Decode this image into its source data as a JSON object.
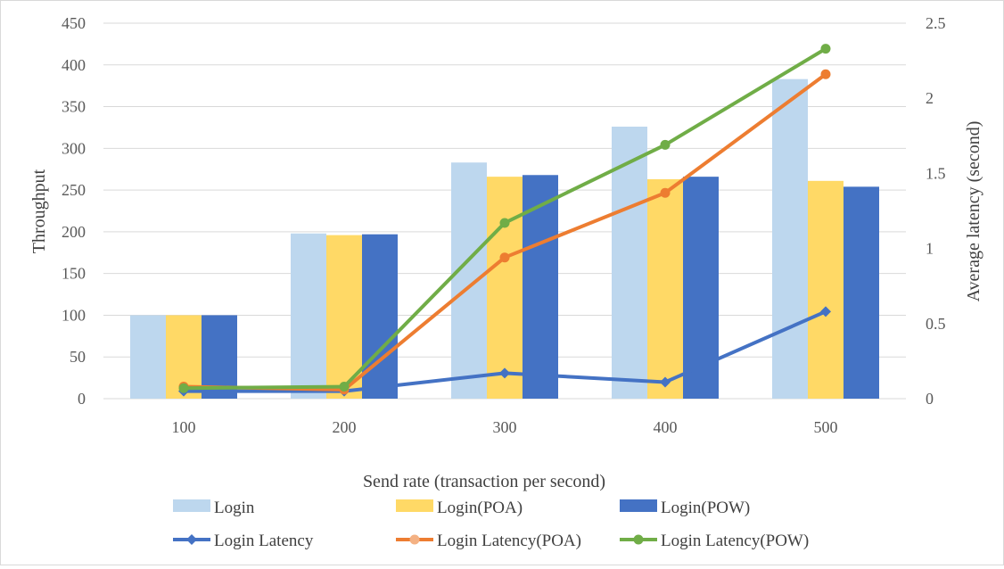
{
  "chart_data": {
    "type": "bar",
    "categories": [
      "100",
      "200",
      "300",
      "400",
      "500"
    ],
    "xlabel": "Send rate (transaction per second)",
    "ylabel": "Throughput",
    "y2label": "Average latency (second)",
    "ylim": [
      0,
      450
    ],
    "y2lim": [
      0,
      2.5
    ],
    "yticks": [
      "0",
      "50",
      "100",
      "150",
      "200",
      "250",
      "300",
      "350",
      "400",
      "450"
    ],
    "y2ticks": [
      "0",
      "0.5",
      "1",
      "1.5",
      "2",
      "2.5"
    ],
    "grid": true,
    "legend_position": "bottom",
    "series": [
      {
        "name": "Login",
        "kind": "bar",
        "axis": "left",
        "color": "#bdd7ee",
        "values": [
          100,
          198,
          283,
          326,
          383
        ]
      },
      {
        "name": "Login(POA)",
        "kind": "bar",
        "axis": "left",
        "color": "#ffd966",
        "values": [
          100,
          196,
          266,
          263,
          261
        ]
      },
      {
        "name": "Login(POW)",
        "kind": "bar",
        "axis": "left",
        "color": "#4472c4",
        "values": [
          100,
          197,
          268,
          266,
          254
        ]
      },
      {
        "name": "Login Latency",
        "kind": "line",
        "marker": "diamond",
        "axis": "right",
        "color": "#4472c4",
        "values": [
          0.05,
          0.05,
          0.17,
          0.11,
          0.58
        ]
      },
      {
        "name": "Login Latency(POA)",
        "kind": "line",
        "marker": "circle",
        "axis": "right",
        "color": "#ed7d31",
        "legend_marker_color": "#f4b183",
        "values": [
          0.08,
          0.06,
          0.94,
          1.37,
          2.16
        ]
      },
      {
        "name": "Login Latency(POW)",
        "kind": "line",
        "marker": "circle",
        "axis": "right",
        "color": "#70ad47",
        "values": [
          0.07,
          0.08,
          1.17,
          1.69,
          2.33
        ]
      }
    ]
  }
}
